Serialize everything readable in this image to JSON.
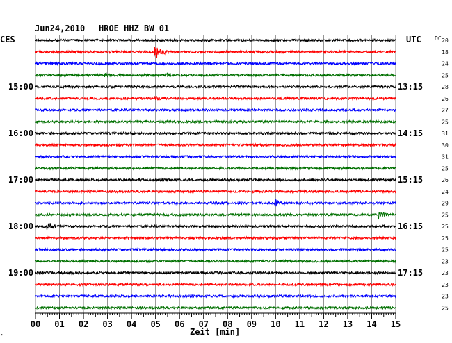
{
  "header": {
    "date": "Jun24,2010",
    "station": "HROE HHZ BW 01"
  },
  "left_label": "CES",
  "right_label": "UTC",
  "dc_label": "DC",
  "corner_mark": "\"",
  "colors": {
    "trace": [
      "#000000",
      "#ff0000",
      "#0000ff",
      "#007000"
    ],
    "grid": "#888888",
    "frame": "#000000"
  },
  "chart_data": {
    "type": "line",
    "title": "Jun24,2010   HROE HHZ BW 01",
    "xlabel": "Zeit [min]",
    "xlim": [
      0,
      15
    ],
    "x_ticks": [
      "00",
      "01",
      "02",
      "03",
      "04",
      "05",
      "06",
      "07",
      "08",
      "09",
      "10",
      "11",
      "12",
      "13",
      "14",
      "15"
    ],
    "rows": 24,
    "minutes_per_row": 15,
    "grid": true,
    "left_time_labels": [
      {
        "row": 4,
        "label": "15:00"
      },
      {
        "row": 8,
        "label": "16:00"
      },
      {
        "row": 12,
        "label": "17:00"
      },
      {
        "row": 16,
        "label": "18:00"
      },
      {
        "row": 20,
        "label": "19:00"
      }
    ],
    "right_time_labels": [
      {
        "row": 4,
        "label": "13:15"
      },
      {
        "row": 8,
        "label": "14:15"
      },
      {
        "row": 12,
        "label": "15:15"
      },
      {
        "row": 16,
        "label": "16:15"
      },
      {
        "row": 20,
        "label": "17:15"
      }
    ],
    "dc_values": [
      "20",
      "18",
      "24",
      "25",
      "28",
      "26",
      "27",
      "25",
      "31",
      "30",
      "31",
      "25",
      "26",
      "24",
      "29",
      "25",
      "25",
      "25",
      "25",
      "23",
      "23",
      "23",
      "23",
      "25"
    ],
    "events": [
      {
        "row": 1,
        "minute": 5.0,
        "amplitude": "large"
      },
      {
        "row": 3,
        "minute": 2.9,
        "amplitude": "small"
      },
      {
        "row": 3,
        "minute": 5.5,
        "amplitude": "small"
      },
      {
        "row": 5,
        "minute": 5.0,
        "amplitude": "small"
      },
      {
        "row": 14,
        "minute": 10.0,
        "amplitude": "medium"
      },
      {
        "row": 15,
        "minute": 14.3,
        "amplitude": "medium"
      },
      {
        "row": 16,
        "minute": 0.5,
        "amplitude": "medium"
      }
    ]
  }
}
